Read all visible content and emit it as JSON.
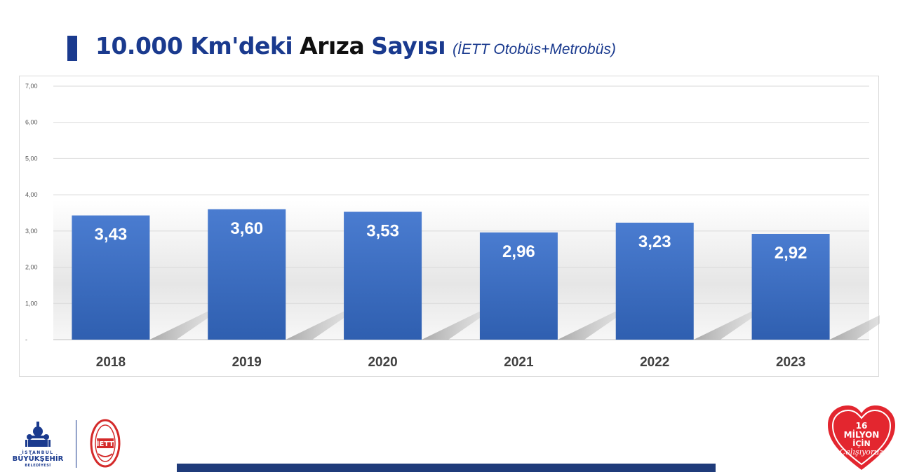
{
  "title": {
    "part1": "10.000 Km'deki",
    "part2": "Arıza",
    "part3": "Sayısı",
    "subtitle": "(İETT Otobüs+Metrobüs)"
  },
  "colors": {
    "title_blue": "#1a3a8e",
    "bar_top": "#4a7cd0",
    "bar_bottom": "#2f5fb0",
    "footer_bar": "#1f3b7a",
    "badge_red": "#e3262f"
  },
  "chart_data": {
    "type": "bar",
    "categories": [
      "2018",
      "2019",
      "2020",
      "2021",
      "2022",
      "2023"
    ],
    "values": [
      3.43,
      3.6,
      3.53,
      2.96,
      3.23,
      2.92
    ],
    "data_labels": [
      "3,43",
      "3,60",
      "3,53",
      "2,96",
      "3,23",
      "2,92"
    ],
    "ylim": [
      0,
      7
    ],
    "yticks": [
      {
        "value": 0,
        "label": "-"
      },
      {
        "value": 1,
        "label": "1,00"
      },
      {
        "value": 2,
        "label": "2,00"
      },
      {
        "value": 3,
        "label": "3,00"
      },
      {
        "value": 4,
        "label": "4,00"
      },
      {
        "value": 5,
        "label": "5,00"
      },
      {
        "value": 6,
        "label": "6,00"
      },
      {
        "value": 7,
        "label": "7,00"
      }
    ],
    "grid": true,
    "legend": "none"
  },
  "footer": {
    "ibb_line1": "İSTANBUL",
    "ibb_line2": "BÜYÜKŞEHİR",
    "ibb_line3": "BELEDİYESİ",
    "iett_logo": "İETT",
    "badge_line1": "16",
    "badge_line2": "MİLYON",
    "badge_line3": "İÇİN",
    "badge_line4": "Çalışıyoruz",
    "icons": [
      "ibb-logo-icon",
      "iett-logo-icon",
      "heart-badge-icon"
    ]
  }
}
